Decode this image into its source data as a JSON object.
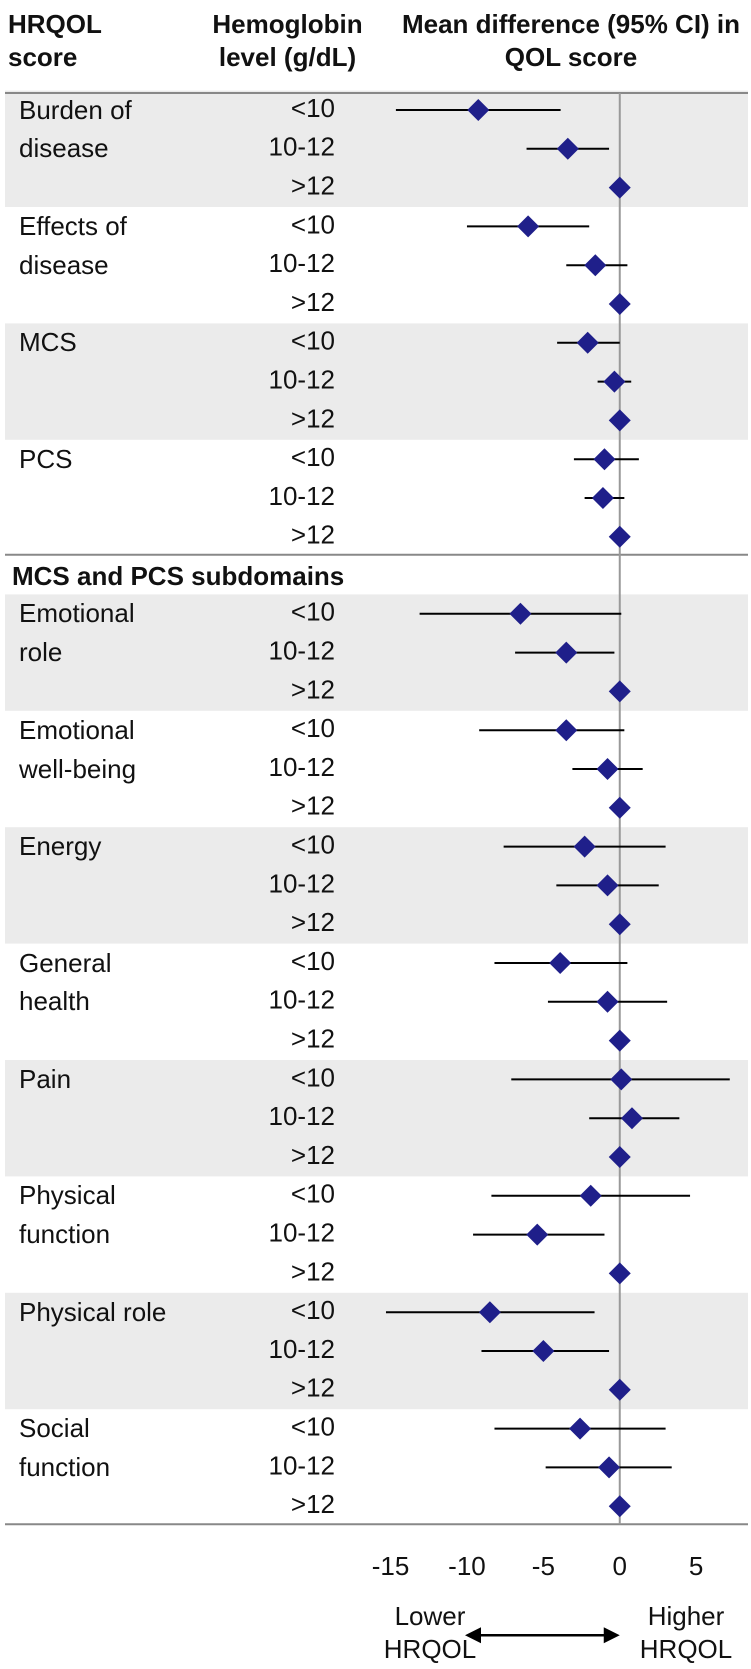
{
  "chart_data": {
    "type": "forest",
    "column_headers": [
      "HRQOL score",
      "Hemoglobin level (g/dL)",
      "Mean difference (95% CI) in QOL score"
    ],
    "color": "#1f1f8a",
    "xlim": [
      -17,
      8
    ],
    "xticks": [
      -15,
      -10,
      -5,
      0,
      5
    ],
    "reference_line": 0,
    "direction_labels": [
      "Lower HRQOL",
      "Higher HRQOL"
    ],
    "sections": [
      {
        "groups": [
          {
            "label": "Burden of disease",
            "rows": [
              {
                "level": "<10",
                "value": -9.26,
                "lower": -14.65,
                "upper": -3.87
              },
              {
                "level": "10-12",
                "value": -3.4,
                "lower": -6.1,
                "upper": -0.7
              },
              {
                "level": ">12",
                "value": 0,
                "lower": null,
                "upper": null
              }
            ]
          },
          {
            "label": "Effects of disease",
            "rows": [
              {
                "level": "<10",
                "value": -6.0,
                "lower": -10.0,
                "upper": -2.0
              },
              {
                "level": "10-12",
                "value": -1.6,
                "lower": -3.5,
                "upper": 0.5
              },
              {
                "level": ">12",
                "value": 0,
                "lower": null,
                "upper": null
              }
            ]
          },
          {
            "label": "MCS",
            "rows": [
              {
                "level": "<10",
                "value": -2.1,
                "lower": -4.1,
                "upper": 0
              },
              {
                "level": "10-12",
                "value": -0.35,
                "lower": -1.45,
                "upper": 0.75
              },
              {
                "level": ">12",
                "value": 0,
                "lower": null,
                "upper": null
              }
            ]
          },
          {
            "label": "PCS",
            "rows": [
              {
                "level": "<10",
                "value": -1.0,
                "lower": -3.0,
                "upper": 1.25
              },
              {
                "level": "10-12",
                "value": -1.1,
                "lower": -2.3,
                "upper": 0.3
              },
              {
                "level": ">12",
                "value": 0,
                "lower": null,
                "upper": null
              }
            ]
          }
        ]
      },
      {
        "title": "MCS and PCS subdomains",
        "groups": [
          {
            "label": "Emotional role",
            "rows": [
              {
                "level": "<10",
                "value": -6.5,
                "lower": -13.1,
                "upper": 0.1
              },
              {
                "level": "10-12",
                "value": -3.5,
                "lower": -6.85,
                "upper": -0.35
              },
              {
                "level": ">12",
                "value": 0,
                "lower": null,
                "upper": null
              }
            ]
          },
          {
            "label": "Emotional well-being",
            "rows": [
              {
                "level": "<10",
                "value": -3.5,
                "lower": -9.2,
                "upper": 0.3
              },
              {
                "level": "10-12",
                "value": -0.8,
                "lower": -3.1,
                "upper": 1.5
              },
              {
                "level": ">12",
                "value": 0,
                "lower": null,
                "upper": null
              }
            ]
          },
          {
            "label": "Energy",
            "rows": [
              {
                "level": "<10",
                "value": -2.3,
                "lower": -7.6,
                "upper": 3.0
              },
              {
                "level": "10-12",
                "value": -0.8,
                "lower": -4.15,
                "upper": 2.55
              },
              {
                "level": ">12",
                "value": 0,
                "lower": null,
                "upper": null
              }
            ]
          },
          {
            "label": "General health",
            "rows": [
              {
                "level": "<10",
                "value": -3.9,
                "lower": -8.2,
                "upper": 0.5
              },
              {
                "level": "10-12",
                "value": -0.8,
                "lower": -4.7,
                "upper": 3.1
              },
              {
                "level": ">12",
                "value": 0,
                "lower": null,
                "upper": null
              }
            ]
          },
          {
            "label": "Pain",
            "rows": [
              {
                "level": "<10",
                "value": 0.1,
                "lower": -7.1,
                "upper": 7.2
              },
              {
                "level": "10-12",
                "value": 0.8,
                "lower": -2.0,
                "upper": 3.9
              },
              {
                "level": ">12",
                "value": 0,
                "lower": null,
                "upper": null
              }
            ]
          },
          {
            "label": "Physical function",
            "rows": [
              {
                "level": "<10",
                "value": -1.9,
                "lower": -8.4,
                "upper": 4.6
              },
              {
                "level": "10-12",
                "value": -5.4,
                "lower": -9.6,
                "upper": -1.0
              },
              {
                "level": ">12",
                "value": 0,
                "lower": null,
                "upper": null
              }
            ]
          },
          {
            "label": "Physical role",
            "rows": [
              {
                "level": "<10",
                "value": -8.5,
                "lower": -15.3,
                "upper": -1.65
              },
              {
                "level": "10-12",
                "value": -5.0,
                "lower": -9.05,
                "upper": -0.7
              },
              {
                "level": ">12",
                "value": 0,
                "lower": null,
                "upper": null
              }
            ]
          },
          {
            "label": "Social function",
            "rows": [
              {
                "level": "<10",
                "value": -2.6,
                "lower": -8.2,
                "upper": 3.0
              },
              {
                "level": "10-12",
                "value": -0.7,
                "lower": -4.85,
                "upper": 3.4
              },
              {
                "level": ">12",
                "value": 0,
                "lower": null,
                "upper": null
              }
            ]
          }
        ]
      }
    ]
  }
}
